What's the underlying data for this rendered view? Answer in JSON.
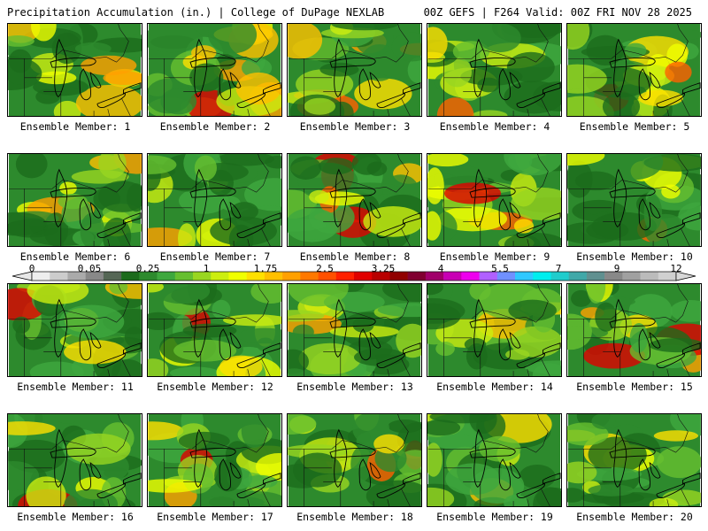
{
  "header": {
    "left": "Precipitation Accumulation (in.) | College of DuPage NEXLAB",
    "right": "00Z GEFS | F264 Valid: 00Z FRI NOV 28 2025"
  },
  "panels": [
    {
      "label": "Ensemble Member: 1"
    },
    {
      "label": "Ensemble Member: 2"
    },
    {
      "label": "Ensemble Member: 3"
    },
    {
      "label": "Ensemble Member: 4"
    },
    {
      "label": "Ensemble Member: 5"
    },
    {
      "label": "Ensemble Member: 6"
    },
    {
      "label": "Ensemble Member: 7"
    },
    {
      "label": "Ensemble Member: 8"
    },
    {
      "label": "Ensemble Member: 9"
    },
    {
      "label": "Ensemble Member: 10"
    },
    {
      "label": "Ensemble Member: 11"
    },
    {
      "label": "Ensemble Member: 12"
    },
    {
      "label": "Ensemble Member: 13"
    },
    {
      "label": "Ensemble Member: 14"
    },
    {
      "label": "Ensemble Member: 15"
    },
    {
      "label": "Ensemble Member: 16"
    },
    {
      "label": "Ensemble Member: 17"
    },
    {
      "label": "Ensemble Member: 18"
    },
    {
      "label": "Ensemble Member: 19"
    },
    {
      "label": "Ensemble Member: 20"
    }
  ],
  "colorbar": {
    "labels": [
      "0",
      "0.05",
      "0.25",
      "1",
      "1.75",
      "2.5",
      "3.25",
      "4",
      "5.5",
      "7",
      "9",
      "12"
    ],
    "colors": [
      "#eeeeee",
      "#cccccc",
      "#aaaaaa",
      "#888888",
      "#556655",
      "#1c6b1c",
      "#2d8a2d",
      "#3ea83e",
      "#66bf30",
      "#99d620",
      "#ccee10",
      "#f0ff00",
      "#ffe000",
      "#ffc000",
      "#ffa000",
      "#ff7800",
      "#ff5000",
      "#ff2000",
      "#e00000",
      "#b80000",
      "#900000",
      "#800030",
      "#a0006a",
      "#c800b4",
      "#ee00ee",
      "#b060ff",
      "#7090ff",
      "#30c8ff",
      "#00eeee",
      "#20cccc",
      "#40a8a8",
      "#609090",
      "#888888",
      "#a0a0a0",
      "#bbbbbb",
      "#d0d0d0"
    ]
  }
}
